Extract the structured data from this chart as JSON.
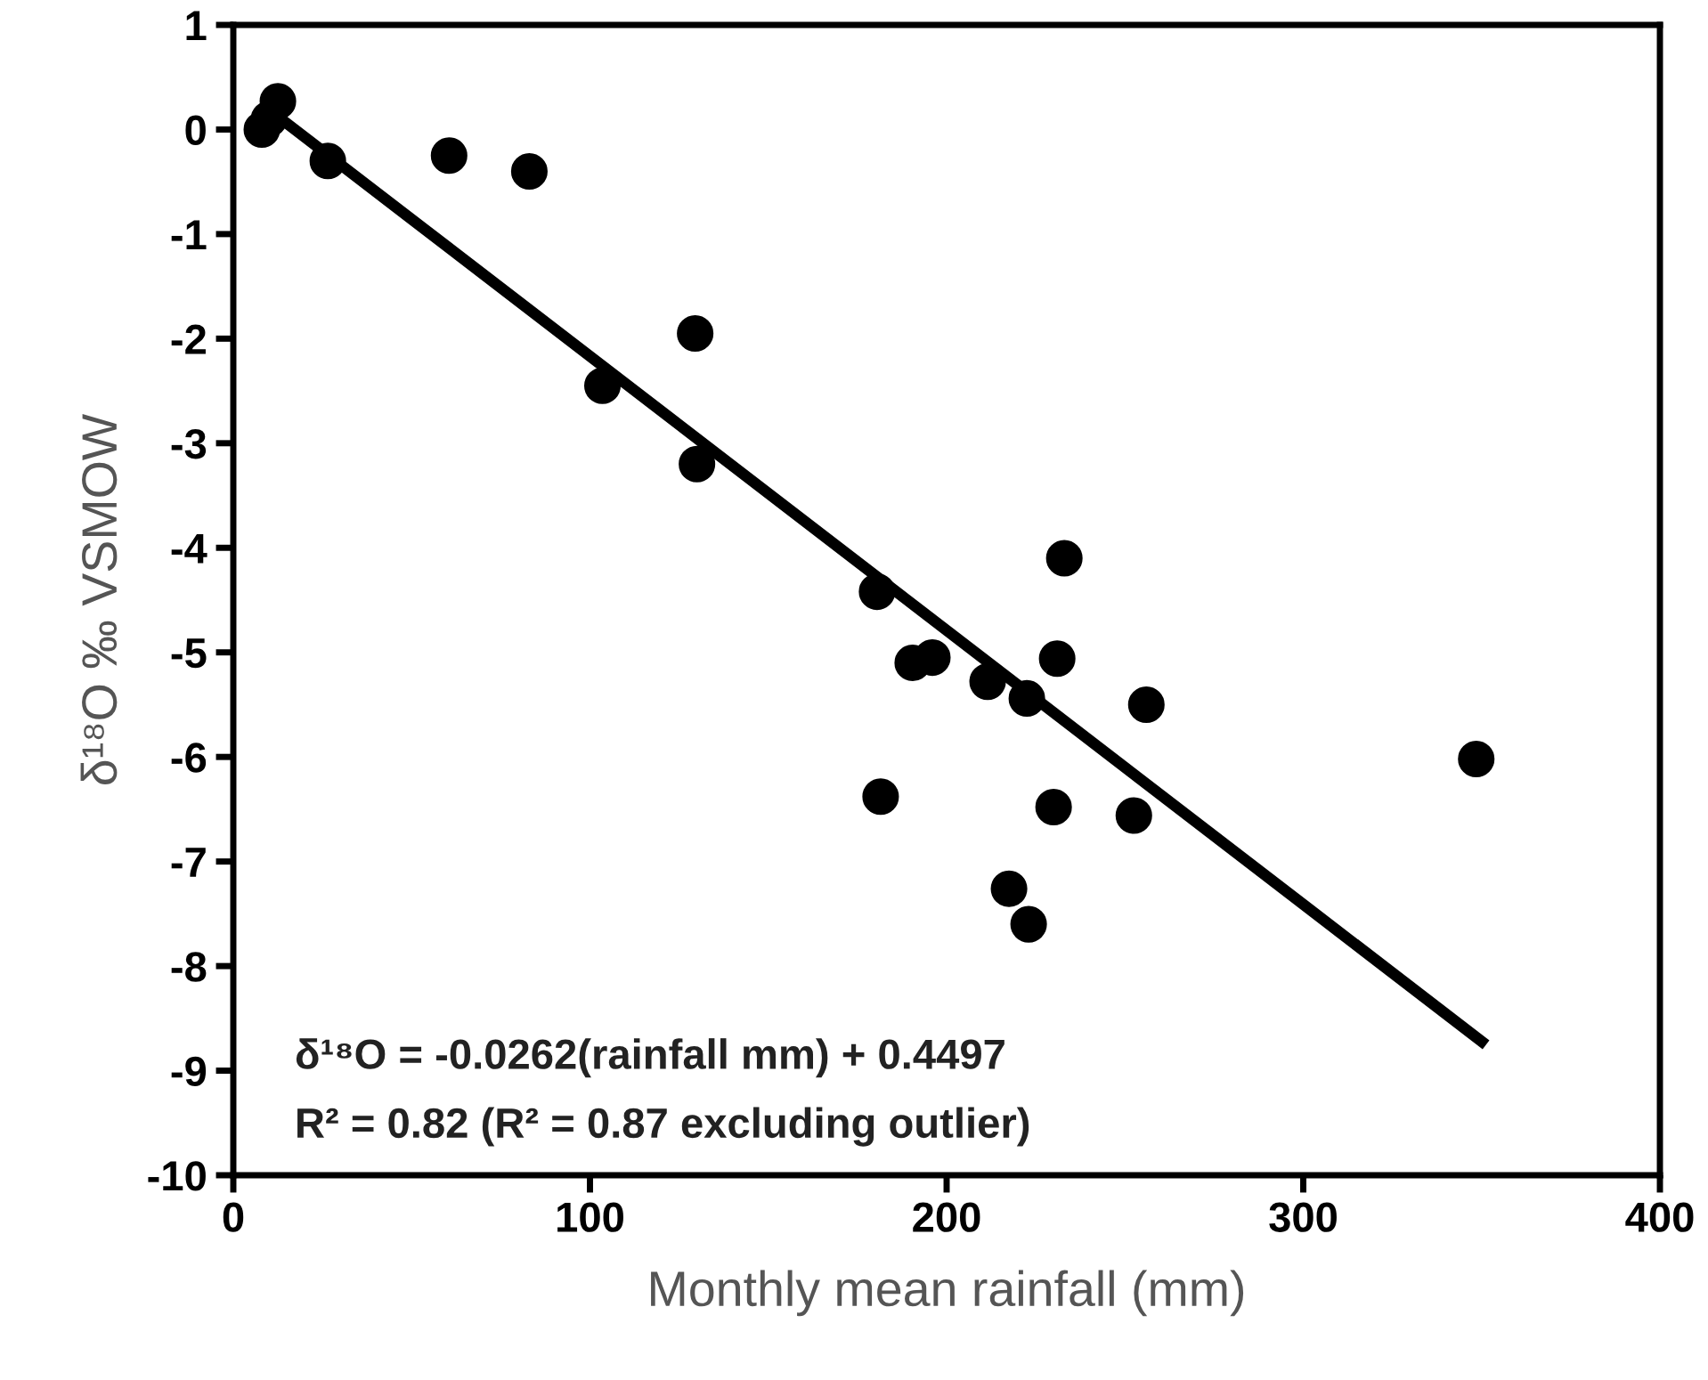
{
  "chart_data": {
    "type": "scatter",
    "xlabel": "Monthly mean rainfall (mm)",
    "ylabel": "δ¹⁸O ‰ VSMOW",
    "xlim": [
      0,
      400
    ],
    "xticks": [
      0,
      100,
      200,
      300,
      400
    ],
    "ylim": [
      -10,
      1
    ],
    "yticks": [
      -10,
      -9,
      -8,
      -7,
      -6,
      -5,
      -4,
      -3,
      -2,
      -1,
      0,
      1
    ],
    "grid": false,
    "series": [
      {
        "marker": "circle",
        "color": "#000000",
        "x": [
          8,
          10,
          12.5,
          26.5,
          60.5,
          83,
          103.5,
          129.5,
          130,
          180.5,
          181.5,
          190.5,
          196,
          211.5,
          217.5,
          222.5,
          223,
          230,
          231,
          233,
          252.5,
          256,
          348.5
        ],
        "values": [
          0,
          0.1,
          0.27,
          -0.3,
          -0.25,
          -0.4,
          -2.45,
          -1.95,
          -3.2,
          -4.42,
          -6.38,
          -5.1,
          -5.05,
          -5.28,
          -7.26,
          -5.44,
          -7.6,
          -6.48,
          -5.06,
          -4.1,
          -6.56,
          -5.5,
          -6.02
        ]
      },
      {
        "type": "line",
        "marker": "none",
        "color": "#000000",
        "x": [
          10,
          350
        ],
        "values": [
          0.19,
          -8.72
        ]
      }
    ],
    "annotations": [
      "δ¹⁸O = -0.0262(rainfall mm) + 0.4497",
      "R² = 0.82 (R² = 0.87 excluding outlier)"
    ]
  }
}
